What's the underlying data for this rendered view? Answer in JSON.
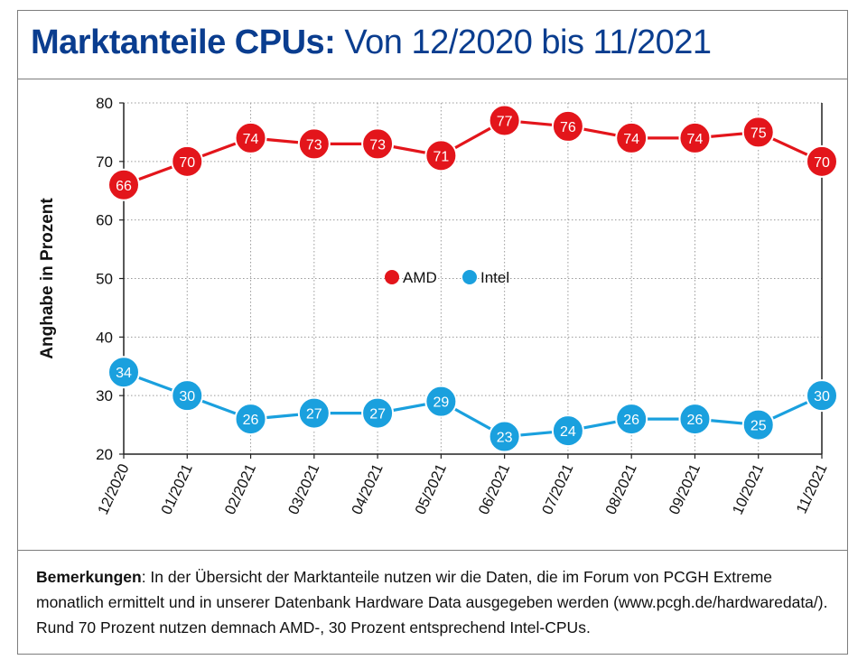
{
  "title": {
    "bold": "Marktanteile CPUs:",
    "rest": "Von 12/2020 bis 11/2021"
  },
  "colors": {
    "title": "#0a3d8f",
    "amd": "#e3151b",
    "intel": "#1aa0de"
  },
  "chart_data": {
    "type": "line",
    "title": "Marktanteile CPUs: Von 12/2020 bis 11/2021",
    "xlabel": "",
    "ylabel": "Anghabe in Prozent",
    "ylim": [
      20,
      80
    ],
    "yticks": [
      20,
      30,
      40,
      50,
      60,
      70,
      80
    ],
    "grid": true,
    "legend_position": "center",
    "categories": [
      "12/2020",
      "01/2021",
      "02/2021",
      "03/2021",
      "04/2021",
      "05/2021",
      "06/2021",
      "07/2021",
      "08/2021",
      "09/2021",
      "10/2021",
      "11/2021"
    ],
    "series": [
      {
        "name": "AMD",
        "color": "#e3151b",
        "values": [
          66,
          70,
          74,
          73,
          73,
          71,
          77,
          76,
          74,
          74,
          75,
          70
        ]
      },
      {
        "name": "Intel",
        "color": "#1aa0de",
        "values": [
          34,
          30,
          26,
          27,
          27,
          29,
          23,
          24,
          26,
          26,
          25,
          30
        ]
      }
    ]
  },
  "footer": {
    "label": "Bemerkungen",
    "text": ": In der Übersicht der Marktanteile nutzen wir die Daten, die im Forum von PCGH Extreme monatlich ermittelt und in unserer Datenbank Hardware Data ausgegeben werden (www.pcgh.de/hardwaredata/). Rund 70 Prozent nutzen demnach AMD-, 30 Prozent entsprechend Intel-CPUs."
  }
}
